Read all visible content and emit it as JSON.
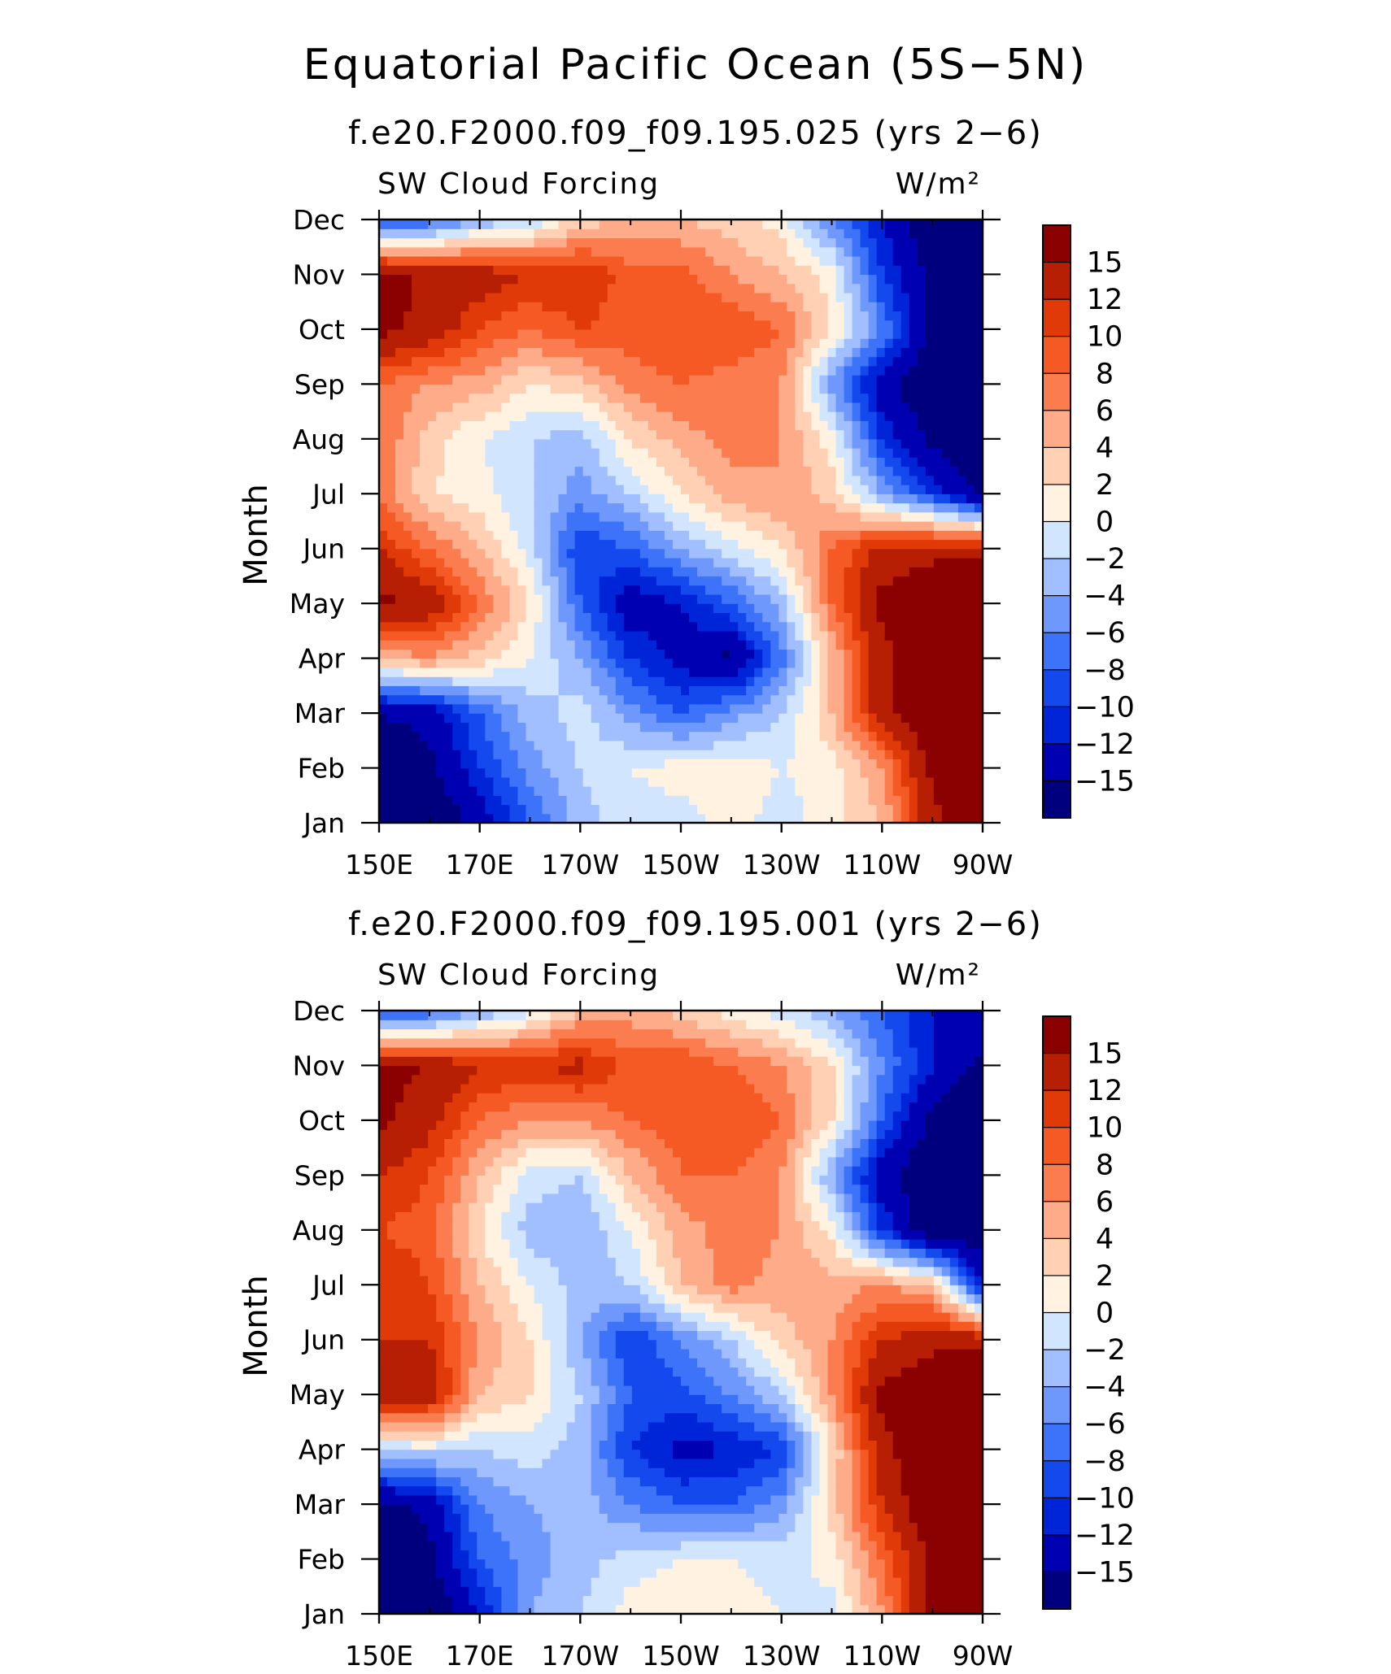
{
  "figure": {
    "title": "Equatorial Pacific Ocean (5S−5N)"
  },
  "colors": {
    "levels": [
      "#00007f",
      "#0000b3",
      "#0024d8",
      "#1449ee",
      "#3d73f8",
      "#6e98fb",
      "#a1beff",
      "#d1e5ff",
      "#fff2e1",
      "#ffd0b4",
      "#fdab88",
      "#fb7d4f",
      "#f55a24",
      "#e03a08",
      "#b71f04",
      "#8b0000"
    ]
  },
  "chart_data": [
    {
      "type": "heatmap",
      "subtitle": "f.e20.F2000.f09_f09.195.025 (yrs 2−6)",
      "left_label": "SW Cloud Forcing",
      "right_label": "W/m²",
      "ylabel": "Month",
      "x_ticks": [
        "150E",
        "170E",
        "170W",
        "150W",
        "130W",
        "110W",
        "90W"
      ],
      "y_ticks": [
        "Jan",
        "Feb",
        "Mar",
        "Apr",
        "May",
        "Jun",
        "Jul",
        "Aug",
        "Sep",
        "Oct",
        "Nov",
        "Dec"
      ],
      "colorbar_labels": [
        "15",
        "12",
        "10",
        "8",
        "6",
        "4",
        "2",
        "0",
        "−2",
        "−4",
        "−6",
        "−8",
        "−10",
        "−12",
        "−15"
      ],
      "x": [
        150,
        160,
        170,
        180,
        190,
        200,
        210,
        220,
        230,
        240,
        250,
        260,
        270
      ],
      "y": [
        "Jan",
        "Feb",
        "Mar",
        "Apr",
        "May",
        "Jun",
        "Jul",
        "Aug",
        "Sep",
        "Oct",
        "Nov",
        "Dec"
      ],
      "z": [
        [
          -18,
          -18,
          -14,
          -8,
          -3,
          -1,
          -1,
          1,
          -1,
          1,
          4,
          14,
          18
        ],
        [
          -18,
          -16,
          -10,
          -5,
          -2,
          0,
          1,
          1,
          0,
          1,
          6,
          16,
          18
        ],
        [
          -15,
          -14,
          -8,
          -3,
          -1,
          -5,
          -8,
          -5,
          -2,
          4,
          14,
          18,
          18
        ],
        [
          4,
          6,
          3,
          0,
          -4,
          -10,
          -13,
          -16,
          -7,
          4,
          14,
          18,
          18
        ],
        [
          16,
          14,
          8,
          2,
          -8,
          -14,
          -12,
          -8,
          -3,
          8,
          16,
          18,
          18
        ],
        [
          12,
          8,
          4,
          -1,
          -10,
          -8,
          -4,
          -1,
          2,
          8,
          13,
          14,
          14
        ],
        [
          8,
          2,
          1,
          -2,
          -5,
          -2,
          2,
          5,
          6,
          3,
          -4,
          -10,
          -16
        ],
        [
          8,
          3,
          0,
          -2,
          -3,
          2,
          5,
          7,
          6,
          1,
          -10,
          -16,
          -18
        ],
        [
          8,
          6,
          5,
          2,
          3,
          7,
          8,
          7,
          6,
          -5,
          -14,
          -18,
          -18
        ],
        [
          16,
          14,
          10,
          8,
          10,
          9,
          10,
          10,
          8,
          2,
          -6,
          -16,
          -18
        ],
        [
          17,
          14,
          14,
          12,
          12,
          9,
          9,
          6,
          4,
          1,
          -10,
          -16,
          -18
        ],
        [
          -10,
          -8,
          -4,
          -2,
          3,
          4,
          4,
          3,
          1,
          -6,
          -12,
          -18,
          -18
        ]
      ],
      "levels": [
        -15,
        -12,
        -10,
        -8,
        -6,
        -4,
        -2,
        0,
        2,
        4,
        6,
        8,
        10,
        12,
        15
      ]
    },
    {
      "type": "heatmap",
      "subtitle": "f.e20.F2000.f09_f09.195.001 (yrs 2−6)",
      "left_label": "SW Cloud Forcing",
      "right_label": "W/m²",
      "ylabel": "Month",
      "x_ticks": [
        "150E",
        "170E",
        "170W",
        "150W",
        "130W",
        "110W",
        "90W"
      ],
      "y_ticks": [
        "Jan",
        "Feb",
        "Mar",
        "Apr",
        "May",
        "Jun",
        "Jul",
        "Aug",
        "Sep",
        "Oct",
        "Nov",
        "Dec"
      ],
      "colorbar_labels": [
        "15",
        "12",
        "10",
        "8",
        "6",
        "4",
        "2",
        "0",
        "−2",
        "−4",
        "−6",
        "−8",
        "−10",
        "−12",
        "−15"
      ],
      "x": [
        150,
        160,
        170,
        180,
        190,
        200,
        210,
        220,
        230,
        240,
        250,
        260,
        270
      ],
      "y": [
        "Jan",
        "Feb",
        "Mar",
        "Apr",
        "May",
        "Jun",
        "Jul",
        "Aug",
        "Sep",
        "Oct",
        "Nov",
        "Dec"
      ],
      "z": [
        [
          -18,
          -18,
          -12,
          -4,
          -2,
          1,
          2,
          1,
          0,
          -1,
          6,
          16,
          18
        ],
        [
          -18,
          -16,
          -8,
          -5,
          -3,
          -1,
          0,
          0,
          -1,
          1,
          8,
          16,
          18
        ],
        [
          -16,
          -14,
          -6,
          -4,
          -3,
          -6,
          -8,
          -8,
          -5,
          3,
          12,
          18,
          18
        ],
        [
          -2,
          -1,
          -2,
          -1,
          -3,
          -10,
          -13,
          -12,
          -10,
          2,
          14,
          18,
          18
        ],
        [
          15,
          14,
          4,
          2,
          -2,
          -8,
          -9,
          -6,
          -2,
          6,
          16,
          18,
          18
        ],
        [
          12,
          12,
          6,
          2,
          -4,
          -10,
          -6,
          -2,
          3,
          6,
          12,
          14,
          14
        ],
        [
          12,
          10,
          4,
          0,
          -3,
          -2,
          4,
          7,
          5,
          5,
          6,
          4,
          -12
        ],
        [
          10,
          9,
          2,
          -3,
          -4,
          0,
          5,
          7,
          6,
          1,
          -10,
          -18,
          -18
        ],
        [
          12,
          10,
          4,
          -1,
          -2,
          4,
          8,
          8,
          6,
          -4,
          -14,
          -18,
          -18
        ],
        [
          16,
          13,
          8,
          6,
          6,
          8,
          9,
          10,
          8,
          2,
          -8,
          -16,
          -18
        ],
        [
          16,
          15,
          12,
          12,
          13,
          9,
          10,
          8,
          6,
          2,
          -6,
          -12,
          -16
        ],
        [
          -10,
          -8,
          -4,
          -1,
          4,
          5,
          3,
          1,
          -1,
          -4,
          -8,
          -12,
          -12
        ]
      ],
      "levels": [
        -15,
        -12,
        -10,
        -8,
        -6,
        -4,
        -2,
        0,
        2,
        4,
        6,
        8,
        10,
        12,
        15
      ]
    }
  ]
}
